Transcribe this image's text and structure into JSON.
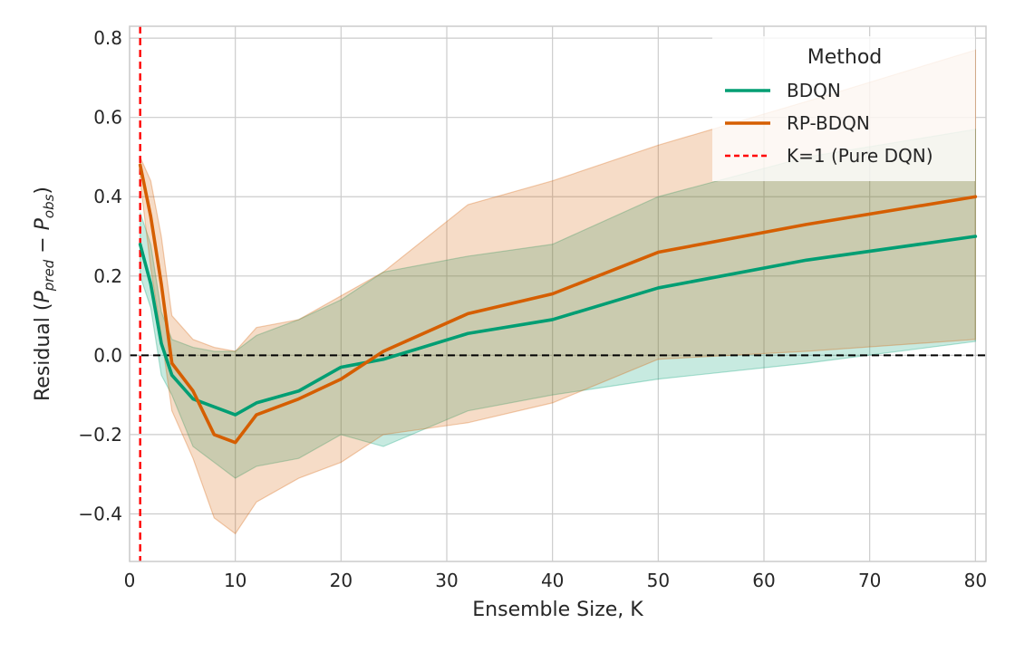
{
  "chart_data": {
    "type": "line",
    "xlabel": "Ensemble Size, K",
    "ylabel": "Residual (P_pred − P_obs)",
    "xlim": [
      0,
      81
    ],
    "ylim": [
      -0.52,
      0.83
    ],
    "xticks": [
      0,
      10,
      20,
      30,
      40,
      50,
      60,
      70,
      80
    ],
    "yticks": [
      -0.4,
      -0.2,
      0.0,
      0.2,
      0.4,
      0.6,
      0.8
    ],
    "xtick_labels": [
      "0",
      "10",
      "20",
      "30",
      "40",
      "50",
      "60",
      "70",
      "80"
    ],
    "ytick_labels": [
      "−0.4",
      "−0.2",
      "0.0",
      "0.2",
      "0.4",
      "0.6",
      "0.8"
    ],
    "grid": true,
    "legend": {
      "title": "Method",
      "placement": "top-right",
      "entries": [
        "BDQN",
        "RP-BDQN",
        "K=1 (Pure DQN)"
      ]
    },
    "reference_lines": [
      {
        "type": "horizontal",
        "y": 0.0,
        "color": "#000000",
        "style": "dashed"
      },
      {
        "type": "vertical",
        "x": 1,
        "color": "#ff0000",
        "style": "dashed",
        "label": "K=1 (Pure DQN)"
      }
    ],
    "series": [
      {
        "name": "BDQN",
        "color": "#009e73",
        "x": [
          1,
          2,
          3,
          4,
          6,
          8,
          10,
          12,
          16,
          20,
          24,
          32,
          40,
          50,
          64,
          80
        ],
        "y": [
          0.28,
          0.18,
          0.03,
          -0.05,
          -0.11,
          -0.13,
          -0.15,
          -0.12,
          -0.09,
          -0.03,
          -0.01,
          0.055,
          0.09,
          0.17,
          0.24,
          0.3
        ],
        "lower": [
          0.2,
          0.12,
          -0.05,
          -0.1,
          -0.23,
          -0.27,
          -0.31,
          -0.28,
          -0.26,
          -0.2,
          -0.23,
          -0.14,
          -0.1,
          -0.06,
          -0.02,
          0.035
        ],
        "upper": [
          0.36,
          0.28,
          0.11,
          0.04,
          0.02,
          0.01,
          0.01,
          0.05,
          0.09,
          0.14,
          0.21,
          0.25,
          0.28,
          0.4,
          0.5,
          0.57
        ]
      },
      {
        "name": "RP-BDQN",
        "color": "#d55e00",
        "x": [
          1,
          2,
          3,
          4,
          6,
          8,
          10,
          12,
          16,
          20,
          24,
          32,
          40,
          50,
          64,
          80
        ],
        "y": [
          0.48,
          0.35,
          0.18,
          -0.02,
          -0.09,
          -0.2,
          -0.22,
          -0.15,
          -0.11,
          -0.06,
          0.01,
          0.105,
          0.155,
          0.26,
          0.33,
          0.4
        ],
        "lower": [
          0.44,
          0.22,
          0.05,
          -0.14,
          -0.26,
          -0.41,
          -0.45,
          -0.37,
          -0.31,
          -0.27,
          -0.2,
          -0.17,
          -0.12,
          -0.01,
          0.01,
          0.04
        ],
        "upper": [
          0.5,
          0.44,
          0.3,
          0.1,
          0.04,
          0.02,
          0.01,
          0.07,
          0.09,
          0.15,
          0.21,
          0.38,
          0.44,
          0.53,
          0.64,
          0.77
        ]
      }
    ]
  }
}
